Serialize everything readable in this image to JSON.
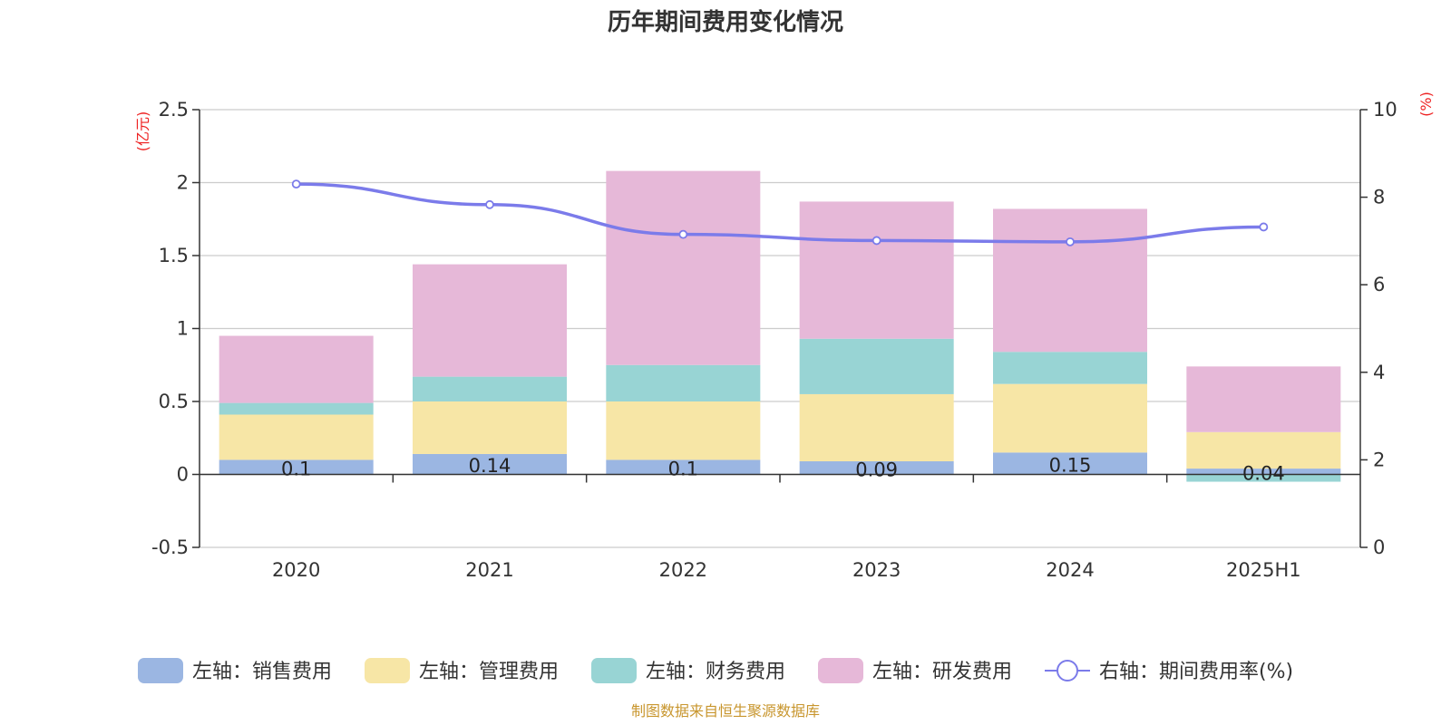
{
  "chart_data": {
    "type": "bar",
    "title": "历年期间费用变化情况",
    "categories": [
      "2020",
      "2021",
      "2022",
      "2023",
      "2024",
      "2025H1"
    ],
    "left_axis": {
      "unit": "(亿元)",
      "ylim": [
        -0.5,
        2.5
      ],
      "ticks": [
        "-0.5",
        "0",
        "0.5",
        "1",
        "1.5",
        "2",
        "2.5"
      ]
    },
    "right_axis": {
      "unit": "(%)",
      "ylim": [
        0,
        10
      ],
      "ticks": [
        "0",
        "2",
        "4",
        "6",
        "8",
        "10"
      ]
    },
    "series": [
      {
        "name": "左轴：销售费用",
        "type": "bar",
        "axis": "left",
        "color": "#9bb6e2",
        "values": [
          0.1,
          0.14,
          0.1,
          0.09,
          0.15,
          0.04
        ],
        "labels": [
          "0.1",
          "0.14",
          "0.1",
          "0.09",
          "0.15",
          "0.04"
        ]
      },
      {
        "name": "左轴：管理费用",
        "type": "bar",
        "axis": "left",
        "color": "#f7e6a6",
        "values": [
          0.31,
          0.36,
          0.4,
          0.46,
          0.47,
          0.25
        ]
      },
      {
        "name": "左轴：财务费用",
        "type": "bar",
        "axis": "left",
        "color": "#98d4d4",
        "values": [
          0.08,
          0.17,
          0.25,
          0.38,
          0.22,
          -0.05
        ]
      },
      {
        "name": "左轴：研发费用",
        "type": "bar",
        "axis": "left",
        "color": "#e6b8d8",
        "values": [
          0.46,
          0.77,
          1.33,
          0.94,
          0.98,
          0.45
        ]
      },
      {
        "name": "右轴：期间费用率(%)",
        "type": "line",
        "axis": "right",
        "color": "#7b7bea",
        "values": [
          8.3,
          7.83,
          7.15,
          7.01,
          6.98,
          7.32
        ]
      }
    ],
    "legend_position": "bottom",
    "grid": true
  },
  "source_text": "制图数据来自恒生聚源数据库"
}
